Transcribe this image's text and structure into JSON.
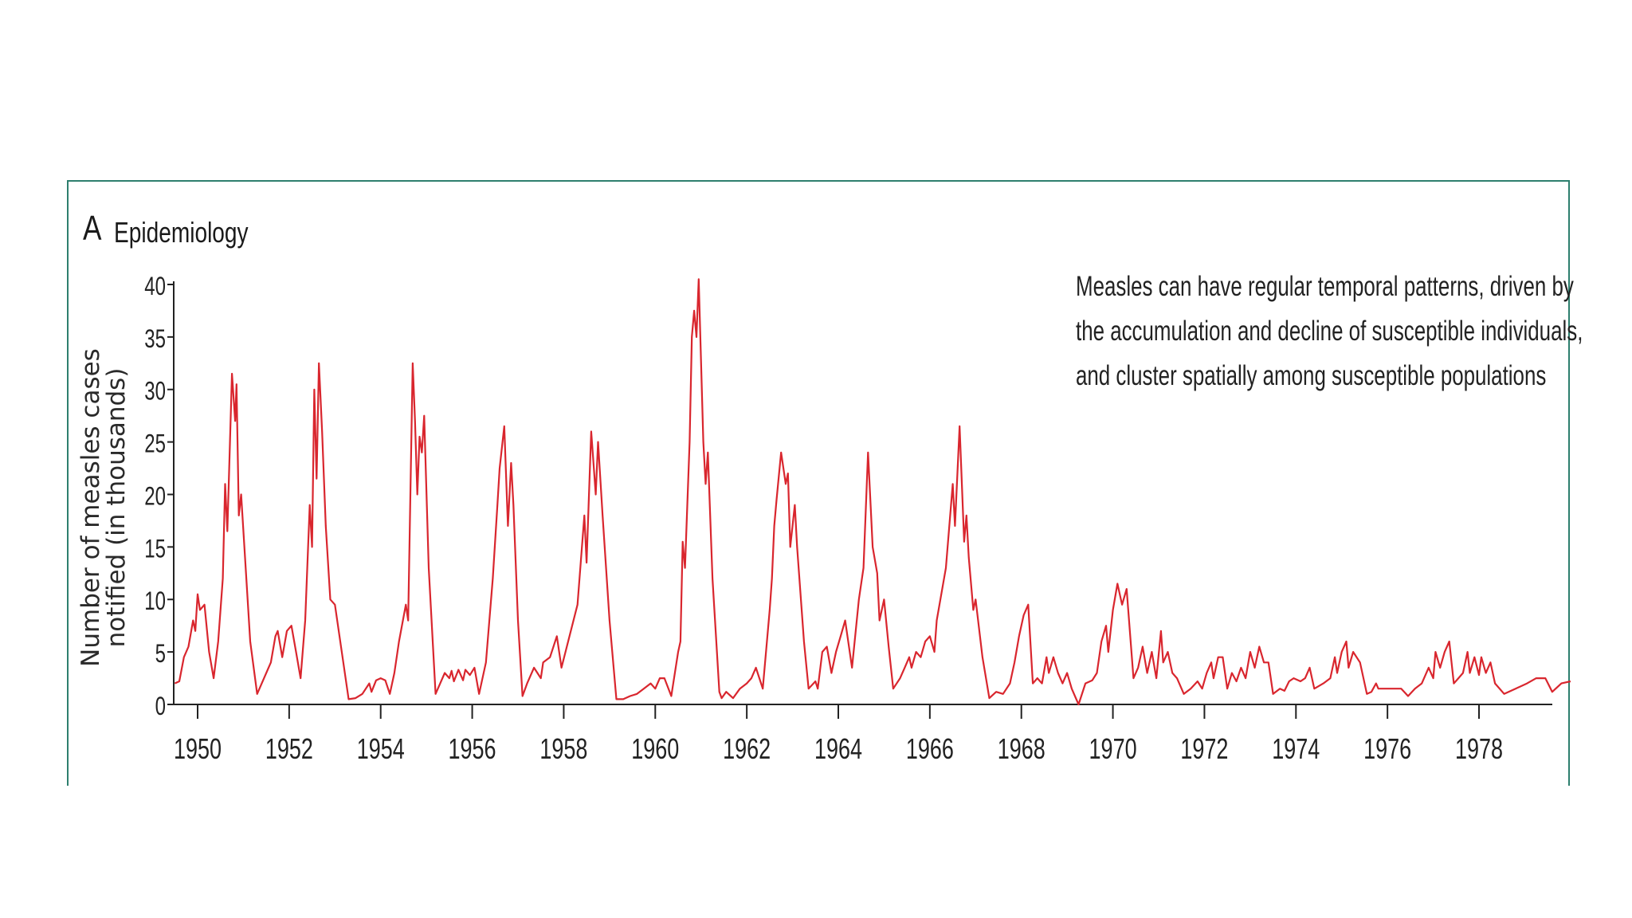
{
  "panel": {
    "letter": "A",
    "title": "Epidemiology"
  },
  "annotation": {
    "lines": [
      "Measles can have regular temporal patterns, driven by",
      "the accumulation and decline of susceptible individuals,",
      "and cluster spatially among susceptible populations"
    ]
  },
  "colors": {
    "line": "#d9262e",
    "frame": "#2e7f6e",
    "axis": "#222222"
  },
  "chart_data": {
    "type": "line",
    "title": "",
    "xlabel": "",
    "ylabel": "Number of measles cases notified (in thousands)",
    "ylabel_lines": [
      "Number of measles cases",
      "notified (in thousands)"
    ],
    "xlim": [
      1949.5,
      1979.6
    ],
    "ylim": [
      0,
      40
    ],
    "yticks": [
      0,
      5,
      10,
      15,
      20,
      25,
      30,
      35,
      40
    ],
    "xticks": [
      1950,
      1952,
      1954,
      1956,
      1958,
      1960,
      1962,
      1964,
      1966,
      1968,
      1970,
      1972,
      1974,
      1976,
      1978
    ],
    "grid": false,
    "series": [
      {
        "values": [
          [
            1949.5,
            2
          ],
          [
            1949.6,
            2.2
          ],
          [
            1949.7,
            4.5
          ],
          [
            1949.8,
            5.5
          ],
          [
            1949.9,
            8
          ],
          [
            1949.95,
            7
          ],
          [
            1950.0,
            10.5
          ],
          [
            1950.05,
            9
          ],
          [
            1950.15,
            9.5
          ],
          [
            1950.25,
            5
          ],
          [
            1950.35,
            2.5
          ],
          [
            1950.45,
            6
          ],
          [
            1950.55,
            12
          ],
          [
            1950.6,
            21
          ],
          [
            1950.65,
            16.5
          ],
          [
            1950.75,
            31.5
          ],
          [
            1950.82,
            27
          ],
          [
            1950.85,
            30.5
          ],
          [
            1950.9,
            18
          ],
          [
            1950.95,
            20
          ],
          [
            1951.05,
            13
          ],
          [
            1951.15,
            6
          ],
          [
            1951.3,
            1
          ],
          [
            1951.45,
            2.5
          ],
          [
            1951.55,
            3.5
          ],
          [
            1951.6,
            4
          ],
          [
            1951.7,
            6.5
          ],
          [
            1951.75,
            7
          ],
          [
            1951.85,
            4.5
          ],
          [
            1951.95,
            7
          ],
          [
            1952.05,
            7.5
          ],
          [
            1952.15,
            5
          ],
          [
            1952.25,
            2.5
          ],
          [
            1952.35,
            8
          ],
          [
            1952.45,
            19
          ],
          [
            1952.5,
            15
          ],
          [
            1952.55,
            30
          ],
          [
            1952.6,
            21.5
          ],
          [
            1952.65,
            32.5
          ],
          [
            1952.72,
            26
          ],
          [
            1952.8,
            17
          ],
          [
            1952.9,
            10
          ],
          [
            1953.0,
            9.5
          ],
          [
            1953.15,
            5
          ],
          [
            1953.3,
            0.5
          ],
          [
            1953.45,
            0.6
          ],
          [
            1953.6,
            1
          ],
          [
            1953.75,
            2
          ],
          [
            1953.8,
            1.2
          ],
          [
            1953.9,
            2.3
          ],
          [
            1954.0,
            2.5
          ],
          [
            1954.1,
            2.3
          ],
          [
            1954.2,
            1
          ],
          [
            1954.3,
            3
          ],
          [
            1954.4,
            6
          ],
          [
            1954.55,
            9.5
          ],
          [
            1954.6,
            8
          ],
          [
            1954.7,
            32.5
          ],
          [
            1954.75,
            27
          ],
          [
            1954.8,
            20
          ],
          [
            1954.85,
            25.5
          ],
          [
            1954.9,
            24
          ],
          [
            1954.95,
            27.5
          ],
          [
            1955.05,
            13
          ],
          [
            1955.2,
            1
          ],
          [
            1955.3,
            2
          ],
          [
            1955.4,
            3
          ],
          [
            1955.5,
            2.5
          ],
          [
            1955.55,
            3.2
          ],
          [
            1955.6,
            2.2
          ],
          [
            1955.7,
            3.3
          ],
          [
            1955.8,
            2.3
          ],
          [
            1955.85,
            3.3
          ],
          [
            1955.95,
            2.8
          ],
          [
            1956.05,
            3.5
          ],
          [
            1956.15,
            1
          ],
          [
            1956.3,
            4
          ],
          [
            1956.45,
            12
          ],
          [
            1956.55,
            19
          ],
          [
            1956.6,
            22.5
          ],
          [
            1956.7,
            26.5
          ],
          [
            1956.78,
            17
          ],
          [
            1956.85,
            23
          ],
          [
            1956.9,
            19
          ],
          [
            1957.0,
            8
          ],
          [
            1957.1,
            0.8
          ],
          [
            1957.2,
            2
          ],
          [
            1957.35,
            3.5
          ],
          [
            1957.5,
            2.5
          ],
          [
            1957.55,
            4
          ],
          [
            1957.7,
            4.5
          ],
          [
            1957.85,
            6.5
          ],
          [
            1957.95,
            3.5
          ],
          [
            1958.3,
            9.5
          ],
          [
            1958.45,
            18
          ],
          [
            1958.5,
            13.5
          ],
          [
            1958.6,
            26
          ],
          [
            1958.7,
            20
          ],
          [
            1958.75,
            25
          ],
          [
            1958.85,
            18
          ],
          [
            1959.0,
            8
          ],
          [
            1959.15,
            0.5
          ],
          [
            1959.3,
            0.5
          ],
          [
            1959.45,
            0.8
          ],
          [
            1959.6,
            1
          ],
          [
            1959.75,
            1.5
          ],
          [
            1959.9,
            2
          ],
          [
            1960.0,
            1.5
          ],
          [
            1960.1,
            2.5
          ],
          [
            1960.2,
            2.5
          ],
          [
            1960.35,
            0.8
          ],
          [
            1960.5,
            5
          ],
          [
            1960.55,
            6
          ],
          [
            1960.6,
            15.5
          ],
          [
            1960.65,
            13
          ],
          [
            1960.75,
            25
          ],
          [
            1960.8,
            35
          ],
          [
            1960.85,
            37.5
          ],
          [
            1960.9,
            35
          ],
          [
            1960.95,
            40.5
          ],
          [
            1961.05,
            25
          ],
          [
            1961.1,
            21
          ],
          [
            1961.15,
            24
          ],
          [
            1961.25,
            12
          ],
          [
            1961.4,
            1.2
          ],
          [
            1961.45,
            0.6
          ],
          [
            1961.55,
            1.2
          ],
          [
            1961.7,
            0.6
          ],
          [
            1961.85,
            1.5
          ],
          [
            1962.0,
            2
          ],
          [
            1962.1,
            2.5
          ],
          [
            1962.2,
            3.5
          ],
          [
            1962.35,
            1.5
          ],
          [
            1962.5,
            9
          ],
          [
            1962.55,
            12
          ],
          [
            1962.6,
            17
          ],
          [
            1962.65,
            19.5
          ],
          [
            1962.75,
            24
          ],
          [
            1962.85,
            21
          ],
          [
            1962.9,
            22
          ],
          [
            1962.95,
            15
          ],
          [
            1963.05,
            19
          ],
          [
            1963.1,
            15
          ],
          [
            1963.25,
            6
          ],
          [
            1963.35,
            1.5
          ],
          [
            1963.5,
            2.2
          ],
          [
            1963.55,
            1.5
          ],
          [
            1963.65,
            5
          ],
          [
            1963.75,
            5.5
          ],
          [
            1963.85,
            3
          ],
          [
            1963.95,
            5
          ],
          [
            1964.05,
            6.5
          ],
          [
            1964.15,
            8
          ],
          [
            1964.3,
            3.5
          ],
          [
            1964.45,
            10
          ],
          [
            1964.55,
            13
          ],
          [
            1964.65,
            24
          ],
          [
            1964.75,
            15
          ],
          [
            1964.85,
            12.5
          ],
          [
            1964.9,
            8
          ],
          [
            1965.0,
            10
          ],
          [
            1965.1,
            5.5
          ],
          [
            1965.2,
            1.5
          ],
          [
            1965.35,
            2.5
          ],
          [
            1965.45,
            3.5
          ],
          [
            1965.55,
            4.5
          ],
          [
            1965.6,
            3.5
          ],
          [
            1965.7,
            5
          ],
          [
            1965.8,
            4.5
          ],
          [
            1965.9,
            6
          ],
          [
            1966.0,
            6.5
          ],
          [
            1966.1,
            5
          ],
          [
            1966.15,
            8
          ],
          [
            1966.35,
            13
          ],
          [
            1966.5,
            21
          ],
          [
            1966.55,
            17
          ],
          [
            1966.65,
            26.5
          ],
          [
            1966.75,
            15.5
          ],
          [
            1966.8,
            18
          ],
          [
            1966.85,
            14
          ],
          [
            1966.95,
            9
          ],
          [
            1967.0,
            10
          ],
          [
            1967.15,
            4.5
          ],
          [
            1967.3,
            0.6
          ],
          [
            1967.45,
            1.2
          ],
          [
            1967.6,
            1
          ],
          [
            1967.75,
            2
          ],
          [
            1967.85,
            4
          ],
          [
            1967.95,
            6.5
          ],
          [
            1968.05,
            8.5
          ],
          [
            1968.15,
            9.5
          ],
          [
            1968.25,
            2
          ],
          [
            1968.35,
            2.5
          ],
          [
            1968.45,
            2
          ],
          [
            1968.55,
            4.5
          ],
          [
            1968.6,
            3
          ],
          [
            1968.7,
            4.5
          ],
          [
            1968.8,
            3
          ],
          [
            1968.9,
            2
          ],
          [
            1969.0,
            3
          ],
          [
            1969.1,
            1.5
          ],
          [
            1969.25,
            0
          ],
          [
            1969.4,
            2
          ],
          [
            1969.55,
            2.3
          ],
          [
            1969.65,
            3
          ],
          [
            1969.75,
            6
          ],
          [
            1969.85,
            7.5
          ],
          [
            1969.9,
            5
          ],
          [
            1970.0,
            9
          ],
          [
            1970.1,
            11.5
          ],
          [
            1970.2,
            9.5
          ],
          [
            1970.3,
            11
          ],
          [
            1970.45,
            2.5
          ],
          [
            1970.55,
            3.5
          ],
          [
            1970.65,
            5.5
          ],
          [
            1970.75,
            3
          ],
          [
            1970.85,
            5
          ],
          [
            1970.95,
            2.5
          ],
          [
            1971.05,
            7
          ],
          [
            1971.1,
            4
          ],
          [
            1971.2,
            5
          ],
          [
            1971.3,
            3
          ],
          [
            1971.4,
            2.5
          ],
          [
            1971.55,
            1
          ],
          [
            1971.7,
            1.5
          ],
          [
            1971.85,
            2.2
          ],
          [
            1971.95,
            1.5
          ],
          [
            1972.05,
            3
          ],
          [
            1972.15,
            4
          ],
          [
            1972.2,
            2.5
          ],
          [
            1972.3,
            4.5
          ],
          [
            1972.4,
            4.5
          ],
          [
            1972.5,
            1.5
          ],
          [
            1972.6,
            3
          ],
          [
            1972.7,
            2.2
          ],
          [
            1972.8,
            3.5
          ],
          [
            1972.9,
            2.5
          ],
          [
            1973.0,
            5
          ],
          [
            1973.1,
            3.5
          ],
          [
            1973.2,
            5.5
          ],
          [
            1973.3,
            4
          ],
          [
            1973.4,
            4
          ],
          [
            1973.5,
            1
          ],
          [
            1973.65,
            1.5
          ],
          [
            1973.75,
            1.3
          ],
          [
            1973.85,
            2.2
          ],
          [
            1973.95,
            2.5
          ],
          [
            1974.1,
            2.2
          ],
          [
            1974.2,
            2.5
          ],
          [
            1974.3,
            3.5
          ],
          [
            1974.4,
            1.5
          ],
          [
            1974.6,
            2
          ],
          [
            1974.75,
            2.5
          ],
          [
            1974.85,
            4.5
          ],
          [
            1974.9,
            3
          ],
          [
            1975.0,
            5
          ],
          [
            1975.1,
            6
          ],
          [
            1975.15,
            3.5
          ],
          [
            1975.25,
            5
          ],
          [
            1975.4,
            4
          ],
          [
            1975.55,
            1
          ],
          [
            1975.65,
            1.2
          ],
          [
            1975.75,
            2
          ],
          [
            1975.8,
            1.5
          ],
          [
            1975.95,
            1.5
          ],
          [
            1976.15,
            1.5
          ],
          [
            1976.3,
            1.5
          ],
          [
            1976.45,
            0.8
          ],
          [
            1976.6,
            1.5
          ],
          [
            1976.75,
            2
          ],
          [
            1976.9,
            3.5
          ],
          [
            1977.0,
            2.5
          ],
          [
            1977.05,
            5
          ],
          [
            1977.15,
            3.5
          ],
          [
            1977.25,
            5
          ],
          [
            1977.35,
            6
          ],
          [
            1977.45,
            2
          ],
          [
            1977.55,
            2.5
          ],
          [
            1977.65,
            3
          ],
          [
            1977.75,
            5
          ],
          [
            1977.8,
            3
          ],
          [
            1977.9,
            4.5
          ],
          [
            1978.0,
            2.8
          ],
          [
            1978.05,
            4.5
          ],
          [
            1978.15,
            3
          ],
          [
            1978.25,
            4
          ],
          [
            1978.35,
            2
          ],
          [
            1978.55,
            1
          ],
          [
            1978.8,
            1.5
          ],
          [
            1979.05,
            2
          ],
          [
            1979.25,
            2.5
          ],
          [
            1979.45,
            2.5
          ],
          [
            1979.6,
            1.2
          ],
          [
            1979.8,
            2
          ],
          [
            1980.0,
            2.2
          ]
        ]
      }
    ]
  }
}
